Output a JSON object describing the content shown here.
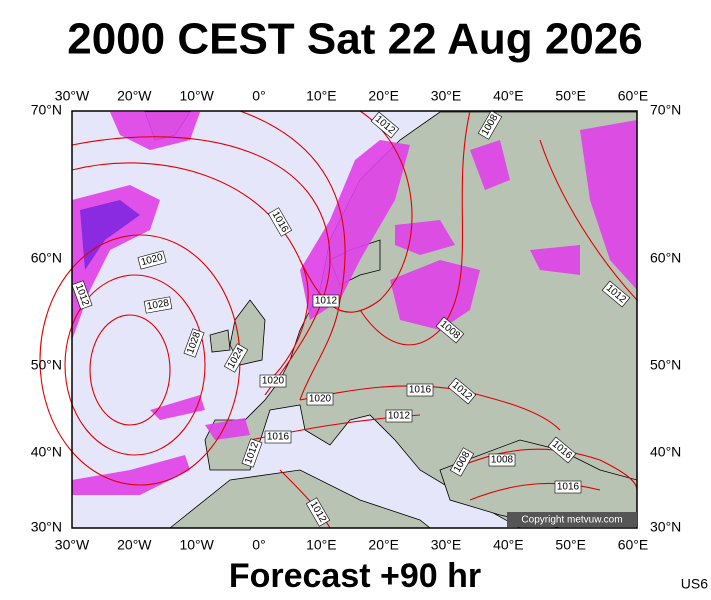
{
  "title": "2000 CEST Sat 22 Aug 2026",
  "footer": "Forecast +90 hr",
  "code": "US6",
  "copyright": "Copyright metvuw.com",
  "map": {
    "lon_labels": [
      "30°W",
      "20°W",
      "10°W",
      "0°",
      "10°E",
      "20°E",
      "30°E",
      "40°E",
      "50°E",
      "60°E"
    ],
    "lat_labels": [
      "70°N",
      "60°N",
      "50°N",
      "40°N",
      "30°N"
    ],
    "isobar_labels": [
      "1012",
      "1008",
      "1016",
      "1020",
      "1012",
      "1028",
      "1028",
      "1024",
      "1012",
      "1008",
      "1020",
      "1016",
      "1012",
      "1020",
      "1012",
      "1016",
      "1012",
      "1008",
      "1008",
      "1016",
      "1016",
      "1012",
      "1012"
    ]
  }
}
